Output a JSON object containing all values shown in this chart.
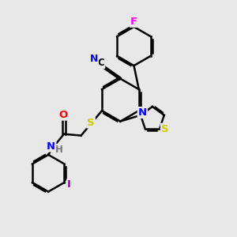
{
  "background_color": "#e8e8e8",
  "atom_colors": {
    "N": "#0000ff",
    "S": "#cccc00",
    "F": "#ff00ff",
    "O": "#ff0000",
    "I": "#9900aa",
    "C": "#000000",
    "H": "#777777"
  },
  "bond_color": "#000000",
  "line_width": 1.8,
  "figsize": [
    3.0,
    3.0
  ],
  "dpi": 100
}
